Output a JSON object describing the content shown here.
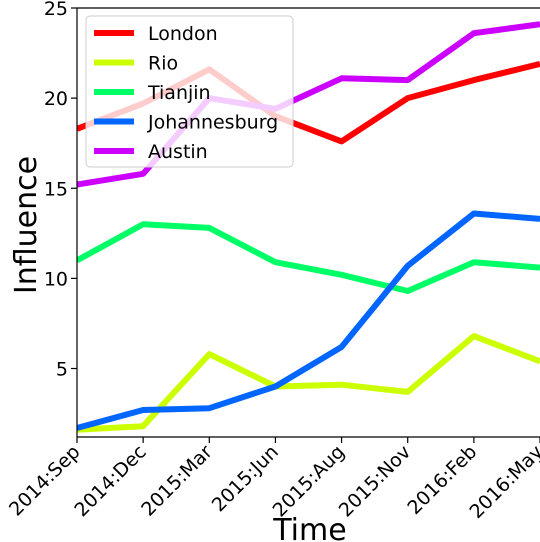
{
  "chart_data": {
    "type": "line",
    "title": "",
    "xlabel": "Time",
    "ylabel": "Influence",
    "categories": [
      "2014:Sep",
      "2014:Dec",
      "2015:Mar",
      "2015:Jun",
      "2015:Aug",
      "2015:Nov",
      "2016:Feb",
      "2016:May"
    ],
    "ylim": [
      1.2,
      25
    ],
    "yticks": [
      5,
      10,
      15,
      20,
      25
    ],
    "grid": false,
    "legend_position": "top-left",
    "series": [
      {
        "name": "London",
        "color": "#ff0000",
        "values": [
          18.3,
          19.7,
          21.6,
          19.0,
          17.6,
          20.0,
          21.0,
          21.9
        ]
      },
      {
        "name": "Rio",
        "color": "#ccff00",
        "values": [
          1.6,
          1.8,
          5.8,
          4.0,
          4.1,
          3.7,
          6.8,
          5.4
        ]
      },
      {
        "name": "Tianjin",
        "color": "#00ff66",
        "values": [
          11.0,
          13.0,
          12.8,
          10.9,
          10.2,
          9.3,
          10.9,
          10.6
        ]
      },
      {
        "name": "Johannesburg",
        "color": "#0066ff",
        "values": [
          1.7,
          2.7,
          2.8,
          4.0,
          6.2,
          10.7,
          13.6,
          13.3
        ]
      },
      {
        "name": "Austin",
        "color": "#cc00ff",
        "values": [
          15.2,
          15.8,
          20.0,
          19.4,
          21.1,
          21.0,
          23.6,
          24.1
        ]
      }
    ]
  }
}
